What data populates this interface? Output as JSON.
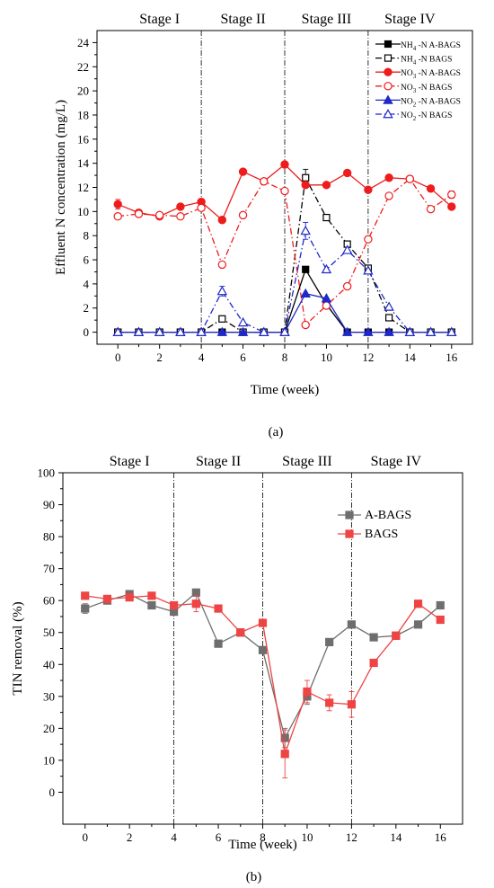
{
  "chart_data": [
    {
      "type": "line",
      "panel_label": "(a)",
      "xlabel": "Time (week)",
      "ylabel": "Effluent N concentration (mg/L)",
      "xlim": [
        -1,
        17
      ],
      "ylim": [
        -1,
        25
      ],
      "xticks": [
        0,
        2,
        4,
        6,
        8,
        10,
        12,
        14,
        16
      ],
      "yticks": [
        0,
        2,
        4,
        6,
        8,
        10,
        12,
        14,
        16,
        18,
        20,
        22,
        24
      ],
      "stage_boundaries": [
        4,
        8,
        12
      ],
      "stages": [
        {
          "label": "Stage I",
          "center": 2
        },
        {
          "label": "Stage II",
          "center": 6
        },
        {
          "label": "Stage III",
          "center": 10
        },
        {
          "label": "Stage IV",
          "center": 14
        }
      ],
      "legend_position": "top-right",
      "series": [
        {
          "name_main": "NH",
          "name_sub": "4",
          "name_rest": "-N A-BAGS",
          "color": "#000000",
          "marker": "square",
          "filled": true,
          "dash": "solid",
          "points": [
            [
              0,
              0
            ],
            [
              1,
              0
            ],
            [
              2,
              0
            ],
            [
              3,
              0
            ],
            [
              4,
              0
            ],
            [
              5,
              0
            ],
            [
              6,
              0
            ],
            [
              7,
              0
            ],
            [
              8,
              0
            ],
            [
              9,
              5.2
            ],
            [
              10,
              2.3
            ],
            [
              11,
              0
            ],
            [
              12,
              0
            ],
            [
              13,
              0
            ],
            [
              14,
              0
            ],
            [
              15,
              0
            ],
            [
              16,
              0
            ]
          ],
          "errors": []
        },
        {
          "name_main": "NH",
          "name_sub": "4",
          "name_rest": "-N BAGS",
          "color": "#000000",
          "marker": "square",
          "filled": false,
          "dash": "dashdot",
          "points": [
            [
              0,
              0
            ],
            [
              1,
              0
            ],
            [
              2,
              0
            ],
            [
              3,
              0
            ],
            [
              4,
              0
            ],
            [
              5,
              1.1
            ],
            [
              6,
              0
            ],
            [
              7,
              0
            ],
            [
              8,
              0
            ],
            [
              9,
              12.8
            ],
            [
              10,
              9.5
            ],
            [
              11,
              7.3
            ],
            [
              12,
              5.3
            ],
            [
              13,
              1.2
            ],
            [
              14,
              0
            ],
            [
              15,
              0
            ],
            [
              16,
              0
            ]
          ],
          "errors": [
            [
              9,
              0.7
            ]
          ]
        },
        {
          "name_main": "NO",
          "name_sub": "3",
          "name_rest": "-N A-BAGS",
          "color": "#ee1c1c",
          "marker": "circle",
          "filled": true,
          "dash": "solid",
          "points": [
            [
              0,
              10.6
            ],
            [
              1,
              9.9
            ],
            [
              2,
              9.6
            ],
            [
              3,
              10.4
            ],
            [
              4,
              10.8
            ],
            [
              5,
              9.3
            ],
            [
              6,
              13.3
            ],
            [
              7,
              12.5
            ],
            [
              8,
              13.9
            ],
            [
              9,
              12.2
            ],
            [
              10,
              12.2
            ],
            [
              11,
              13.2
            ],
            [
              12,
              11.8
            ],
            [
              13,
              12.8
            ],
            [
              14,
              12.7
            ],
            [
              15,
              11.9
            ],
            [
              16,
              10.4
            ]
          ],
          "errors": [
            [
              0,
              0.4
            ]
          ]
        },
        {
          "name_main": "NO",
          "name_sub": "3",
          "name_rest": "-N BAGS",
          "color": "#ee1c1c",
          "marker": "circle",
          "filled": false,
          "dash": "dashdot",
          "points": [
            [
              0,
              9.6
            ],
            [
              1,
              9.8
            ],
            [
              2,
              9.7
            ],
            [
              3,
              9.6
            ],
            [
              4,
              10.3
            ],
            [
              5,
              5.6
            ],
            [
              6,
              9.7
            ],
            [
              7,
              12.5
            ],
            [
              8,
              11.7
            ],
            [
              9,
              0.6
            ],
            [
              10,
              2.2
            ],
            [
              11,
              3.8
            ],
            [
              12,
              7.7
            ],
            [
              13,
              11.3
            ],
            [
              14,
              12.7
            ],
            [
              15,
              10.2
            ],
            [
              16,
              11.4
            ]
          ],
          "errors": [
            [
              16,
              0.3
            ]
          ]
        },
        {
          "name_main": "NO",
          "name_sub": "2",
          "name_rest": "-N A-BAGS",
          "color": "#1f28c8",
          "marker": "triangle",
          "filled": true,
          "dash": "solid",
          "points": [
            [
              0,
              0
            ],
            [
              1,
              0
            ],
            [
              2,
              0
            ],
            [
              3,
              0
            ],
            [
              4,
              0
            ],
            [
              5,
              0
            ],
            [
              6,
              0
            ],
            [
              7,
              0
            ],
            [
              8,
              0
            ],
            [
              9,
              3.2
            ],
            [
              10,
              2.8
            ],
            [
              11,
              0
            ],
            [
              12,
              0
            ],
            [
              13,
              0
            ],
            [
              14,
              0
            ],
            [
              15,
              0
            ],
            [
              16,
              0
            ]
          ],
          "errors": []
        },
        {
          "name_main": "NO",
          "name_sub": "2",
          "name_rest": "-N BAGS",
          "color": "#1f28c8",
          "marker": "triangle",
          "filled": false,
          "dash": "dashdot",
          "points": [
            [
              0,
              0
            ],
            [
              1,
              0
            ],
            [
              2,
              0
            ],
            [
              3,
              0
            ],
            [
              4,
              0
            ],
            [
              5,
              3.4
            ],
            [
              6,
              0.8
            ],
            [
              7,
              0
            ],
            [
              8,
              0
            ],
            [
              9,
              8.4
            ],
            [
              10,
              5.2
            ],
            [
              11,
              6.8
            ],
            [
              12,
              5.1
            ],
            [
              13,
              2.1
            ],
            [
              14,
              0
            ],
            [
              15,
              0
            ],
            [
              16,
              0
            ]
          ],
          "errors": [
            [
              5,
              0.4
            ],
            [
              9,
              0.7
            ]
          ]
        }
      ]
    },
    {
      "type": "line",
      "panel_label": "(b)",
      "xlabel": "Time (week)",
      "ylabel": "TIN removal (%)",
      "xlim": [
        -1,
        17
      ],
      "ylim": [
        -10,
        100
      ],
      "xticks": [
        0,
        2,
        4,
        6,
        8,
        10,
        12,
        14,
        16
      ],
      "yticks": [
        0,
        10,
        20,
        30,
        40,
        50,
        60,
        70,
        80,
        90,
        100
      ],
      "stage_boundaries": [
        4,
        8,
        12
      ],
      "stages": [
        {
          "label": "Stage I",
          "center": 2
        },
        {
          "label": "Stage II",
          "center": 6
        },
        {
          "label": "Stage III",
          "center": 10
        },
        {
          "label": "Stage IV",
          "center": 14
        }
      ],
      "legend_position": "upper-right",
      "series": [
        {
          "name": "A-BAGS",
          "color": "#6e6e6e",
          "marker": "square",
          "filled": true,
          "dash": "solid",
          "points": [
            [
              0,
              57.5
            ],
            [
              1,
              60
            ],
            [
              2,
              62
            ],
            [
              3,
              58.5
            ],
            [
              4,
              56.5
            ],
            [
              5,
              62.5
            ],
            [
              6,
              46.5
            ],
            [
              7,
              50
            ],
            [
              8,
              44.5
            ],
            [
              9,
              17
            ],
            [
              10,
              30
            ],
            [
              11,
              47
            ],
            [
              12,
              52.5
            ],
            [
              13,
              48.5
            ],
            [
              14,
              49
            ],
            [
              15,
              52.5
            ],
            [
              16,
              58.5
            ]
          ],
          "errors": [
            [
              0,
              1.5
            ],
            [
              9,
              3
            ],
            [
              10,
              2.5
            ]
          ]
        },
        {
          "name": "BAGS",
          "color": "#ee4444",
          "marker": "square",
          "filled": true,
          "dash": "solid",
          "points": [
            [
              0,
              61.5
            ],
            [
              1,
              60.5
            ],
            [
              2,
              61
            ],
            [
              3,
              61.5
            ],
            [
              4,
              58.5
            ],
            [
              5,
              59
            ],
            [
              6,
              57.5
            ],
            [
              7,
              50
            ],
            [
              8,
              53
            ],
            [
              9,
              12
            ],
            [
              10,
              31.5
            ],
            [
              11,
              28
            ],
            [
              12,
              27.5
            ],
            [
              13,
              40.5
            ],
            [
              14,
              49
            ],
            [
              15,
              59
            ],
            [
              16,
              54
            ]
          ],
          "errors": [
            [
              5,
              2.5
            ],
            [
              9,
              7.5
            ],
            [
              10,
              3.5
            ],
            [
              11,
              2.5
            ],
            [
              12,
              4
            ]
          ]
        }
      ]
    }
  ]
}
